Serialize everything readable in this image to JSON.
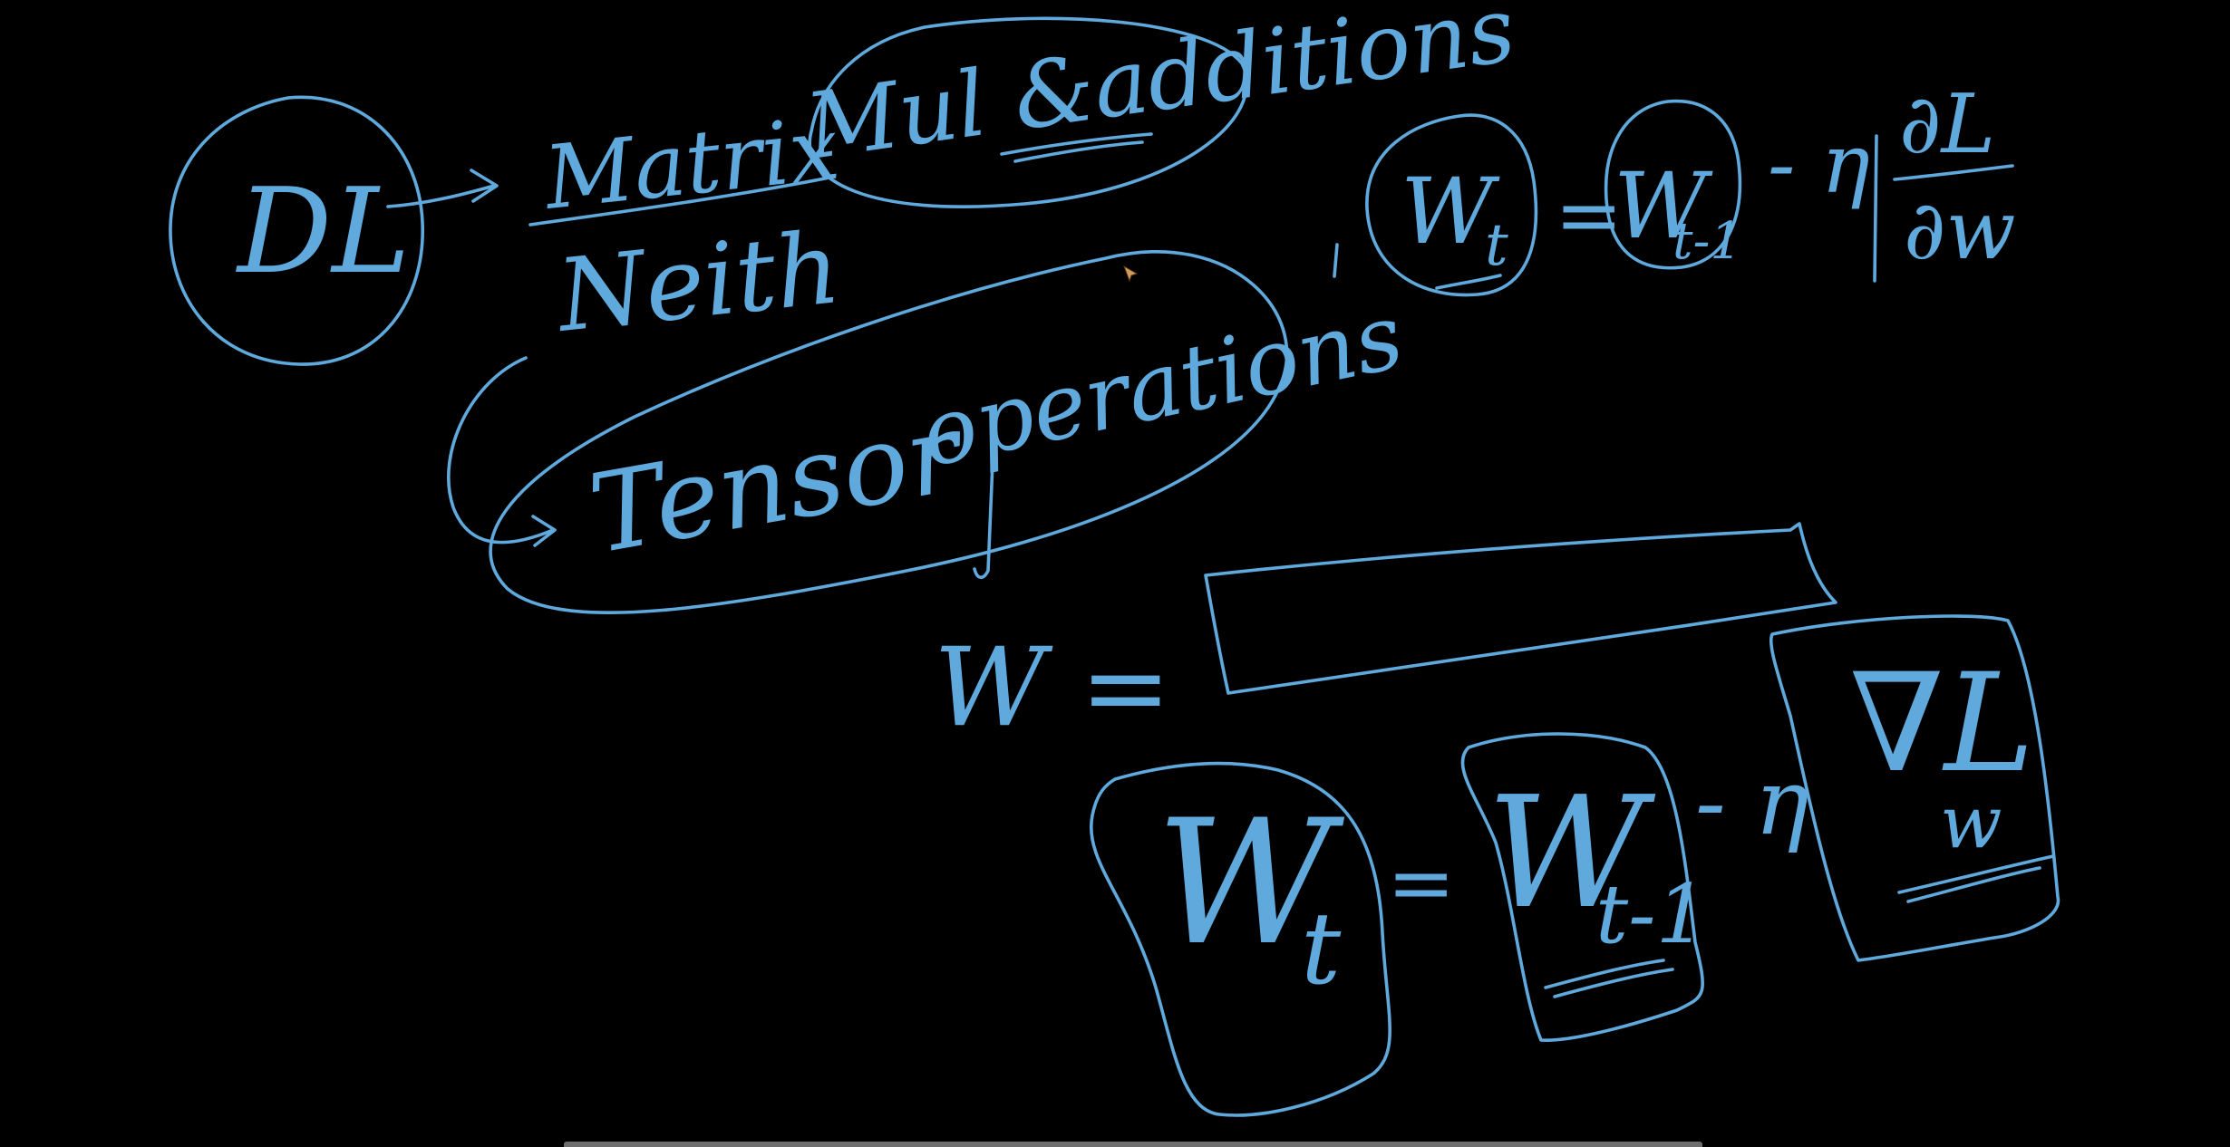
{
  "canvas": {
    "background": "#000000",
    "ink_color": "#5fa9dc"
  },
  "notes": {
    "dl": "DL",
    "matrix": "Matrix",
    "mul_additions": "Mul &additions",
    "neither": "Neith",
    "tensor": "Tensor",
    "operations": "operations",
    "update_rule_top": {
      "lhs": "W",
      "lhs_sub": "t",
      "equals": "=",
      "rhs": "W",
      "rhs_sub": "t-1",
      "minus_eta": "- η",
      "num": "∂L",
      "den": "∂w"
    },
    "w_vector": "W =",
    "update_rule_bottom": {
      "lhs": "W",
      "lhs_sub": "t",
      "equals": "=",
      "rhs": "W",
      "rhs_sub": "t-1",
      "minus_eta": "- η",
      "grad": "∇L",
      "grad_sub": "w"
    }
  },
  "icons": {
    "cursor": "pen-cursor-icon"
  }
}
